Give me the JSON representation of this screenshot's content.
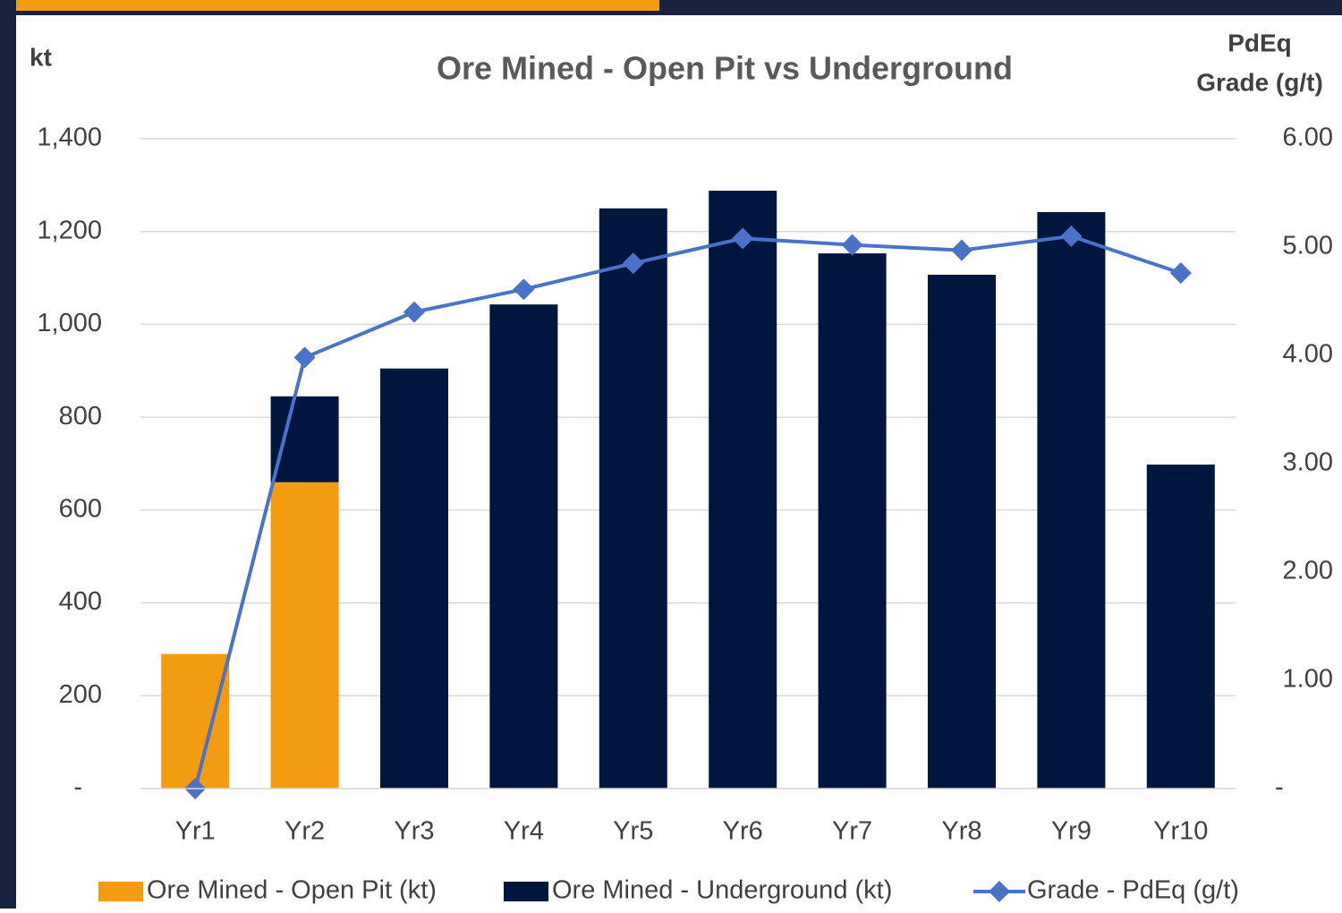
{
  "chart_data": {
    "type": "bar",
    "title": "Ore Mined - Open Pit vs Underground",
    "ylabel": "kt",
    "y2label": [
      "PdEq",
      "Grade (g/t)"
    ],
    "stacked": true,
    "categories": [
      "Yr1",
      "Yr2",
      "Yr3",
      "Yr4",
      "Yr5",
      "Yr6",
      "Yr7",
      "Yr8",
      "Yr9",
      "Yr10"
    ],
    "series": [
      {
        "name": "Ore Mined - Open Pit (kt)",
        "color": "#f39c12",
        "type": "bar",
        "values": [
          290,
          660,
          0,
          0,
          0,
          0,
          0,
          0,
          0,
          0
        ]
      },
      {
        "name": "Ore Mined - Underground (kt)",
        "color": "#00163f",
        "type": "bar",
        "values": [
          0,
          185,
          905,
          1043,
          1250,
          1288,
          1153,
          1107,
          1242,
          698
        ]
      },
      {
        "name": "Grade - PdEq (g/t)",
        "color": "#4a72c8",
        "type": "line",
        "axis": "y2",
        "values": [
          0,
          3.98,
          4.4,
          4.61,
          4.85,
          5.08,
          5.02,
          4.97,
          5.1,
          4.76
        ]
      }
    ],
    "ylim": [
      0,
      1400
    ],
    "yticks": [
      {
        "value": 0,
        "label": "-"
      },
      200,
      400,
      600,
      800,
      {
        "value": 1000,
        "label": "1,000"
      },
      {
        "value": 1200,
        "label": "1,200"
      },
      {
        "value": 1400,
        "label": "1,400"
      }
    ],
    "y2lim": [
      0,
      6
    ],
    "y2ticks": [
      {
        "value": 0,
        "label": "-"
      },
      {
        "value": 1,
        "label": "1.00"
      },
      {
        "value": 2,
        "label": "2.00"
      },
      {
        "value": 3,
        "label": "3.00"
      },
      {
        "value": 4,
        "label": "4.00"
      },
      {
        "value": 5,
        "label": "5.00"
      },
      {
        "value": 6,
        "label": "6.00"
      }
    ],
    "grid": true,
    "legend": "bottom"
  }
}
